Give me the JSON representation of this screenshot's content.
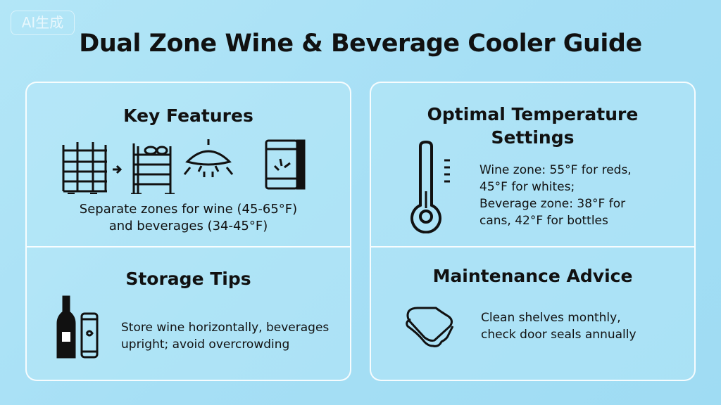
{
  "watermark": "AI生成",
  "title": "Dual Zone Wine & Beverage Cooler Guide",
  "sections": [
    {
      "heading": "Key Features",
      "lines": [
        "Separate zones for wine (45-65°F)",
        "and beverages (34-45°F)"
      ],
      "icons": [
        "shelf-rack-icon",
        "arrow-right-icon",
        "wine-rack-icon",
        "ceiling-fan-light-icon",
        "digital-control-panel-icon"
      ]
    },
    {
      "heading_lines": [
        "Optimal Temperature",
        "Settings"
      ],
      "lines": [
        "Wine zone: 55°F for reds,",
        "45°F for whites;",
        "Beverage zone: 38°F for",
        "cans, 42°F for bottles"
      ],
      "icons": [
        "thermometer-icon"
      ]
    },
    {
      "heading": "Storage Tips",
      "lines": [
        "Store wine horizontally, beverages",
        "upright; avoid overcrowding"
      ],
      "icons": [
        "wine-bottle-icon",
        "can-icon"
      ]
    },
    {
      "heading": "Maintenance Advice",
      "lines": [
        "Clean shelves monthly,",
        "check door seals annually"
      ],
      "icons": [
        "cloth-icon"
      ]
    }
  ]
}
